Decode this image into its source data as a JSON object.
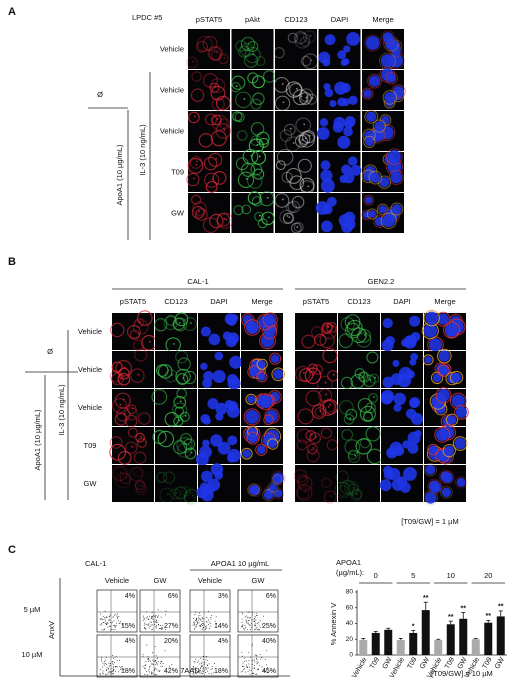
{
  "panel_a": {
    "label": "A",
    "sample": "LPDC #5",
    "columns": [
      "pSTAT5",
      "pAkt",
      "CD123",
      "DAPI",
      "Merge"
    ],
    "rows": [
      "Vehicle",
      "Vehicle",
      "Vehicle",
      "T09",
      "GW"
    ],
    "none_label": "Ø",
    "il3_label": "IL-3 (10 ng/mL)",
    "apoa1_label": "ApoA1 (10 µg/mL)"
  },
  "panel_b": {
    "label": "B",
    "groups": [
      {
        "name": "CAL-1",
        "columns": [
          "pSTAT5",
          "CD123",
          "DAPI",
          "Merge"
        ]
      },
      {
        "name": "GEN2.2",
        "columns": [
          "pSTAT5",
          "CD123",
          "DAPI",
          "Merge"
        ]
      }
    ],
    "rows": [
      "Vehicle",
      "Vehicle",
      "Vehicle",
      "T09",
      "GW"
    ],
    "none_label": "Ø",
    "il3_label": "IL-3 (10 ng/mL)",
    "apoa1_label": "ApoA1 (10 µg/mL)",
    "note": "[T09/GW] = 1 µM"
  },
  "panel_c": {
    "label": "C",
    "cell_line": "CAL-1",
    "apoa1_header": "APOA1 10 µg/mL",
    "columns": [
      "Vehicle",
      "GW",
      "Vehicle",
      "GW"
    ],
    "rows": [
      {
        "label": "5 µM",
        "plots": [
          [
            "4%",
            "15%"
          ],
          [
            "6%",
            "27%"
          ],
          [
            "3%",
            "14%"
          ],
          [
            "6%",
            "25%"
          ]
        ]
      },
      {
        "label": "10 µM",
        "plots": [
          [
            "4%",
            "18%"
          ],
          [
            "20%",
            "42%"
          ],
          [
            "4%",
            "18%"
          ],
          [
            "40%",
            "45%"
          ]
        ]
      }
    ],
    "y_label": "AnxV",
    "x_label": "7AAD"
  },
  "chart_data": {
    "type": "bar",
    "group_title": [
      "APOA1",
      "(µg/mL):"
    ],
    "groups": [
      "0",
      "5",
      "10",
      "20"
    ],
    "categories": [
      "Vehicle",
      "T09",
      "GW",
      "Vehicle",
      "T09",
      "GW",
      "Vehicle",
      "T09",
      "GW",
      "Vehicle",
      "T09",
      "GW"
    ],
    "values": [
      19,
      28,
      32,
      19,
      28,
      57,
      19,
      39,
      46,
      20,
      41,
      49
    ],
    "errors": [
      2,
      2,
      2,
      2,
      3,
      10,
      1,
      4,
      8,
      1,
      3,
      7
    ],
    "colors": [
      "#aaaaaa",
      "#111111",
      "#111111",
      "#aaaaaa",
      "#111111",
      "#111111",
      "#aaaaaa",
      "#111111",
      "#111111",
      "#aaaaaa",
      "#111111",
      "#111111"
    ],
    "significance": [
      null,
      null,
      null,
      null,
      "*",
      "**",
      null,
      "**",
      "**",
      null,
      "**",
      "**"
    ],
    "y_label": "% Annexin V",
    "ylim": [
      0,
      80
    ],
    "yticks": [
      0,
      20,
      40,
      60,
      80
    ],
    "note": "[T09/GW] = 10 µM"
  }
}
